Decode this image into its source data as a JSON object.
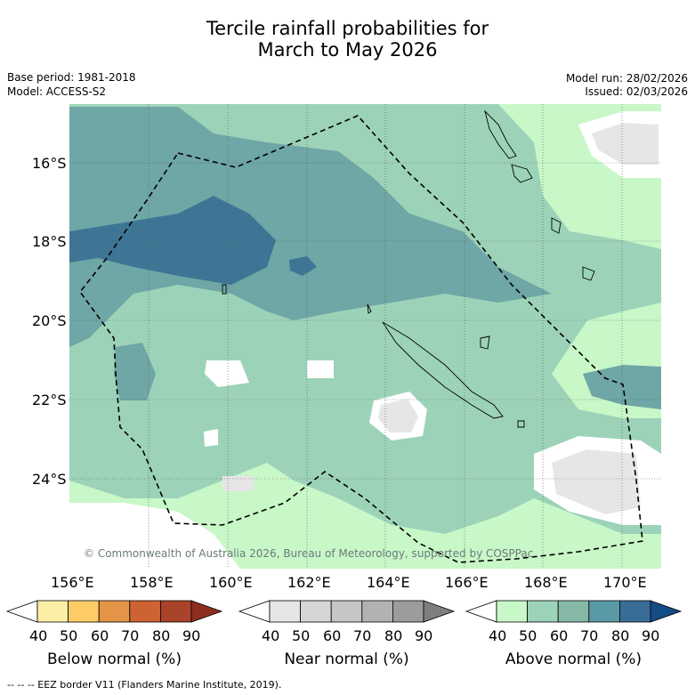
{
  "title": {
    "line1": "Tercile rainfall probabilities for",
    "line2": "March to May 2026"
  },
  "meta": {
    "base_period": "Base period: 1981-2018",
    "model": "Model: ACCESS-S2",
    "model_run": "Model run: 28/02/2026",
    "issued": "Issued: 02/03/2026"
  },
  "map": {
    "lon_ticks": [
      "156°E",
      "158°E",
      "160°E",
      "162°E",
      "164°E",
      "166°E",
      "168°E",
      "170°E"
    ],
    "lat_ticks": [
      "16°S",
      "18°S",
      "20°S",
      "22°S",
      "24°S"
    ],
    "copyright": "© Commonwealth of Australia 2026, Bureau of Meteorology, supported by COSPPac",
    "colors": {
      "above_50": "#c8f7c8",
      "above_60": "#9cd3b8",
      "above_70": "#6fa6a6",
      "above_80": "#3e7595",
      "near": "#e6e6e6",
      "land_outline": "#000000"
    }
  },
  "legends": [
    {
      "label": "Below normal (%)",
      "ticks": [
        "40",
        "50",
        "60",
        "70",
        "80",
        "90"
      ],
      "colors": [
        "#ffffff",
        "#fdeea6",
        "#fdcc66",
        "#e49446",
        "#cd6232",
        "#a9432a",
        "#8e2e1e"
      ]
    },
    {
      "label": "Near normal (%)",
      "ticks": [
        "40",
        "50",
        "60",
        "70",
        "80",
        "90"
      ],
      "colors": [
        "#ffffff",
        "#e6e6e6",
        "#d6d6d6",
        "#c6c6c6",
        "#b2b2b2",
        "#9c9c9c",
        "#7e7e7e"
      ]
    },
    {
      "label": "Above normal (%)",
      "ticks": [
        "40",
        "50",
        "60",
        "70",
        "80",
        "90"
      ],
      "colors": [
        "#ffffff",
        "#c8f7c8",
        "#9cd3b8",
        "#86b8a8",
        "#5a9aa6",
        "#3a6c98",
        "#144c84"
      ]
    }
  ],
  "footer": "--  --  -- EEZ border V11 (Flanders Marine Institute, 2019)."
}
